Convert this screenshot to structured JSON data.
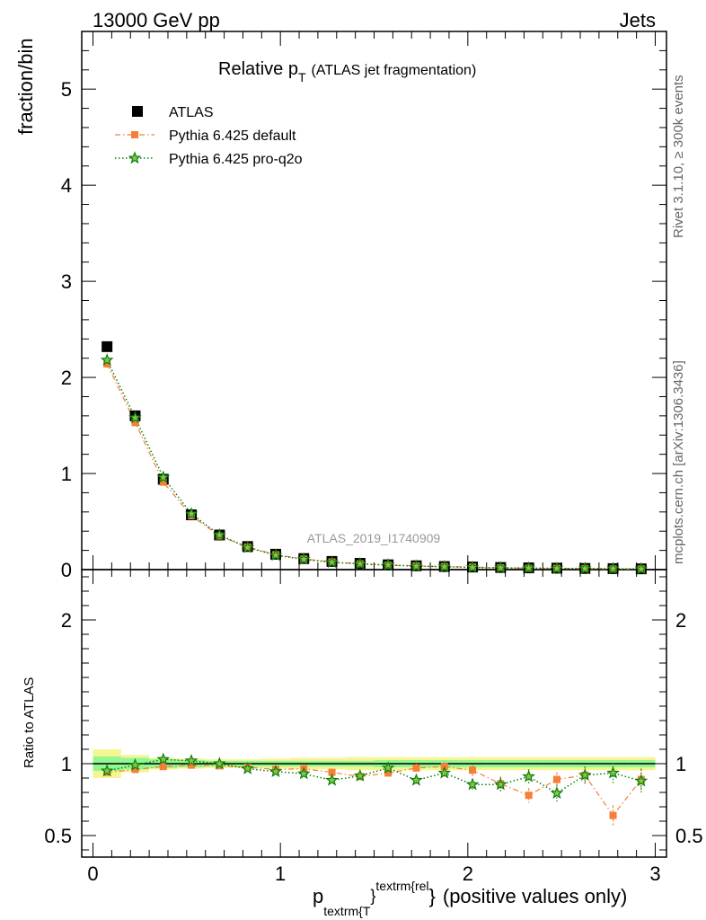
{
  "header": {
    "left": "13000 GeV pp",
    "right": "Jets"
  },
  "side_labels": {
    "rivet": "Rivet 3.1.10, ≥ 300k events",
    "mcplots": "mcplots.cern.ch [arXiv:1306.3436]"
  },
  "colors": {
    "atlas": "#000000",
    "default": "#f57f37",
    "pro": "#0a7f0a",
    "band_inner": "#91f791",
    "band_outer": "#f5f591",
    "watermark": "#999999"
  },
  "chart_data": {
    "type": "line",
    "title_main": "Relative p",
    "title_sub": "T",
    "title_suffix": "(ATLAS jet fragmentation)",
    "watermark": "ATLAS_2019_I1740909",
    "ylabel_main": "fraction/bin",
    "ylabel_ratio": "Ratio to ATLAS",
    "xlabel": {
      "p": "p",
      "sub": "textrm{T",
      "brace1": "}",
      "sup": "textrm{rel",
      "brace2": "}",
      "rest": "(positive values only)"
    },
    "xlim": [
      -0.06,
      3.06
    ],
    "ylim_main": [
      0,
      5.6
    ],
    "ylim_ratio": [
      0.35,
      2.35
    ],
    "x_ticks": [
      "0",
      "1",
      "2",
      "3"
    ],
    "y_ticks_main": [
      "0",
      "1",
      "2",
      "3",
      "4",
      "5"
    ],
    "y_ticks_ratio": [
      "0.5",
      "1",
      "2"
    ],
    "legend": [
      "ATLAS",
      "Pythia 6.425 default",
      "Pythia 6.425 pro-q2o"
    ],
    "x": [
      0.075,
      0.225,
      0.375,
      0.525,
      0.675,
      0.825,
      0.975,
      1.125,
      1.275,
      1.425,
      1.575,
      1.725,
      1.875,
      2.025,
      2.175,
      2.325,
      2.475,
      2.625,
      2.775,
      2.925
    ],
    "series": [
      {
        "name": "ATLAS",
        "values": [
          2.32,
          1.6,
          0.94,
          0.57,
          0.36,
          0.24,
          0.16,
          0.115,
          0.085,
          0.065,
          0.05,
          0.04,
          0.032,
          0.027,
          0.022,
          0.018,
          0.015,
          0.012,
          0.01,
          0.008
        ]
      },
      {
        "name": "Pythia 6.425 default",
        "values": [
          2.14,
          1.53,
          0.91,
          0.56,
          0.35,
          0.235,
          0.155,
          0.11,
          0.08,
          0.06,
          0.047,
          0.039,
          0.031,
          0.026,
          0.019,
          0.014,
          0.013,
          0.011,
          0.0064,
          0.0071
        ],
        "ratio": [
          0.94,
          0.96,
          0.98,
          0.99,
          0.985,
          0.975,
          0.96,
          0.965,
          0.94,
          0.91,
          0.935,
          0.97,
          0.98,
          0.955,
          0.86,
          0.78,
          0.89,
          0.92,
          0.64,
          0.89
        ]
      },
      {
        "name": "Pythia 6.425 pro-q2o",
        "values": [
          2.18,
          1.58,
          0.96,
          0.58,
          0.36,
          0.23,
          0.15,
          0.107,
          0.076,
          0.06,
          0.048,
          0.036,
          0.03,
          0.023,
          0.019,
          0.0164,
          0.012,
          0.011,
          0.0094,
          0.0071
        ],
        "ratio": [
          0.95,
          0.99,
          1.03,
          1.02,
          1.0,
          0.965,
          0.945,
          0.93,
          0.885,
          0.915,
          0.97,
          0.885,
          0.935,
          0.855,
          0.855,
          0.91,
          0.795,
          0.92,
          0.935,
          0.88
        ]
      }
    ],
    "ratio_errors_default": [
      0.02,
      0.02,
      0.02,
      0.02,
      0.02,
      0.02,
      0.02,
      0.02,
      0.02,
      0.03,
      0.03,
      0.03,
      0.03,
      0.04,
      0.05,
      0.05,
      0.05,
      0.06,
      0.07,
      0.08
    ],
    "ratio_errors_pro": [
      0.02,
      0.02,
      0.02,
      0.02,
      0.02,
      0.02,
      0.02,
      0.02,
      0.02,
      0.03,
      0.03,
      0.03,
      0.03,
      0.04,
      0.05,
      0.05,
      0.06,
      0.06,
      0.07,
      0.08
    ],
    "band_inner_halfwidth": [
      0.05,
      0.04,
      0.03,
      0.025,
      0.02,
      0.02,
      0.02,
      0.02,
      0.02,
      0.02,
      0.025,
      0.025,
      0.025,
      0.025,
      0.025,
      0.025,
      0.025,
      0.025,
      0.025,
      0.025
    ],
    "band_outer_halfwidth": [
      0.1,
      0.06,
      0.04,
      0.035,
      0.03,
      0.03,
      0.035,
      0.04,
      0.04,
      0.045,
      0.045,
      0.045,
      0.045,
      0.045,
      0.045,
      0.045,
      0.045,
      0.045,
      0.045,
      0.045
    ]
  }
}
